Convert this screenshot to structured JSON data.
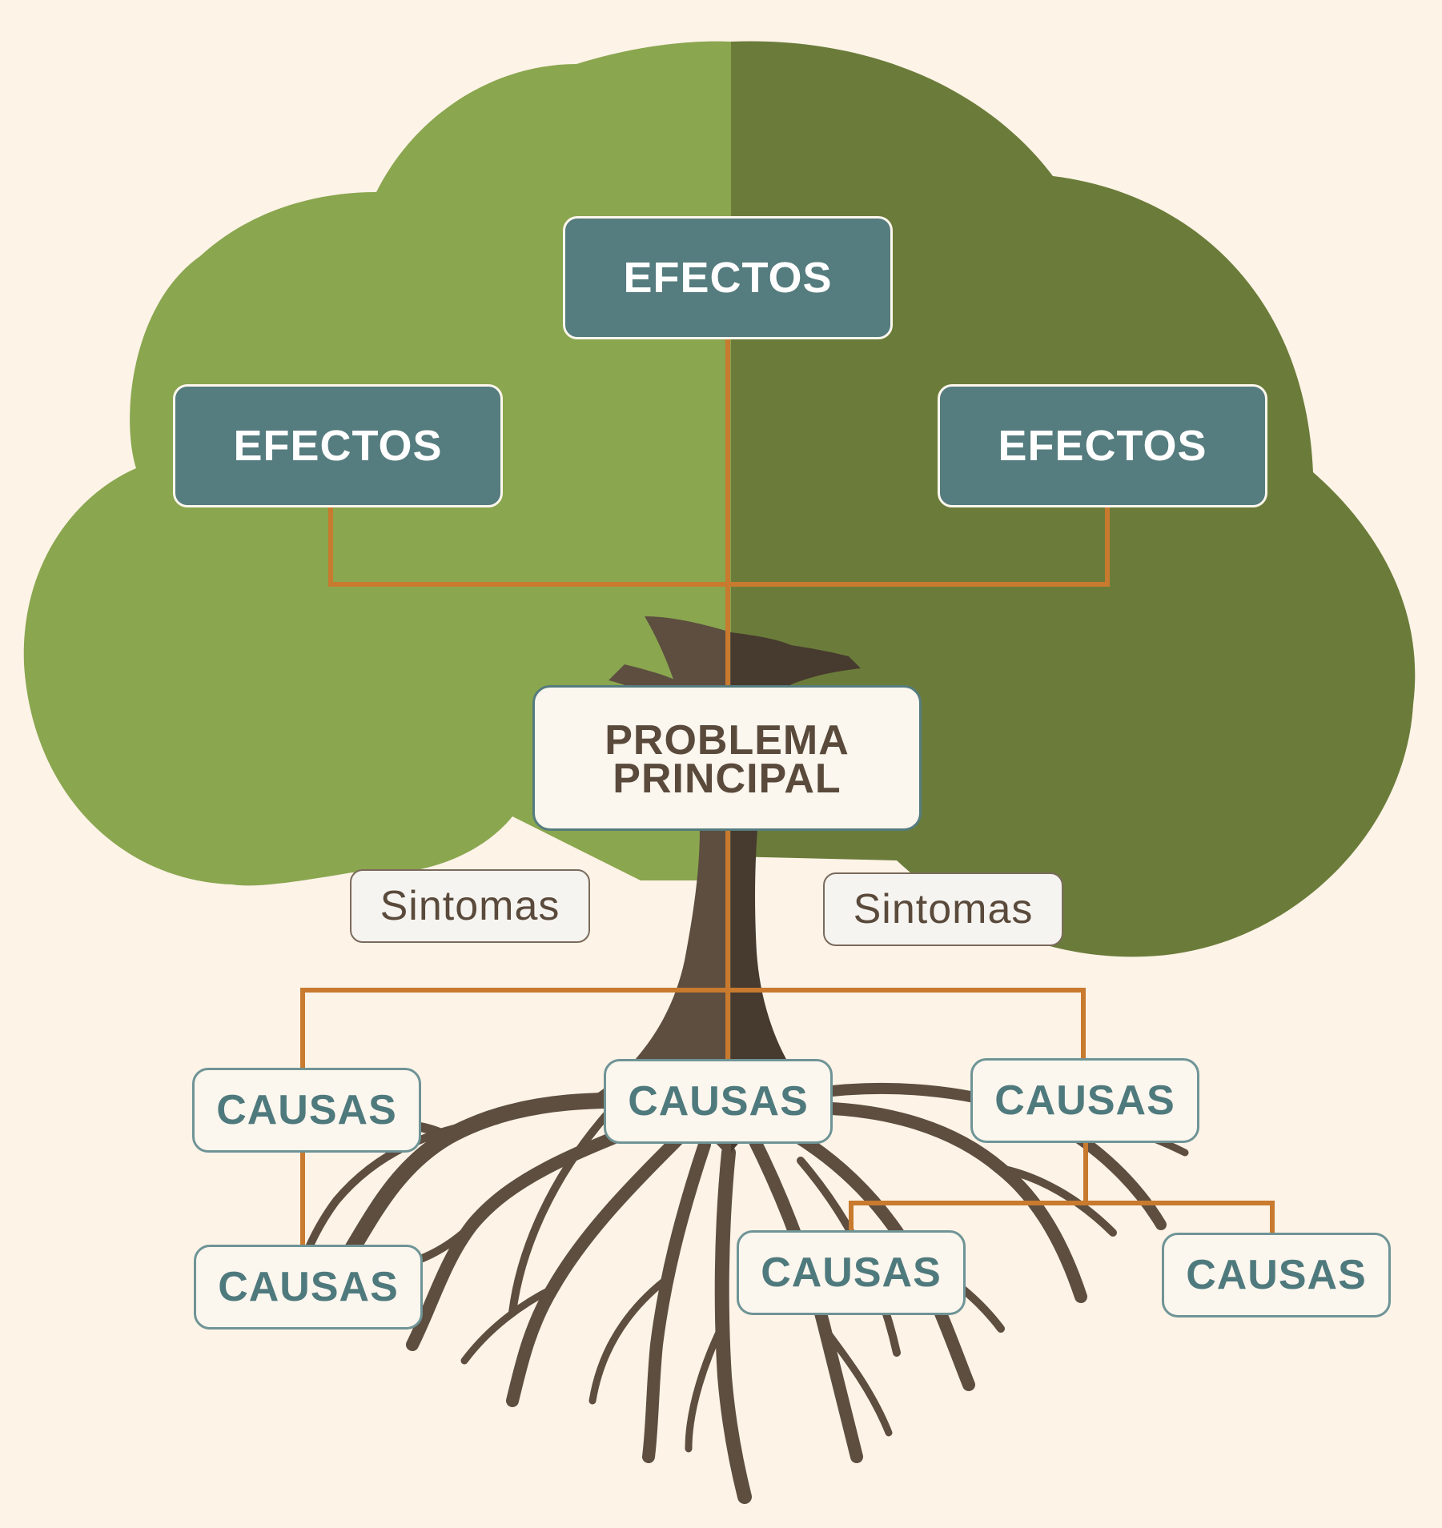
{
  "diagram": {
    "type": "problem-tree",
    "colors": {
      "background": "#fdf3e7",
      "canopy_light": "#8aa64f",
      "canopy_dark": "#6b7c3a",
      "trunk": "#5d4e40",
      "trunk_shadow": "#473a2f",
      "connector": "#c87a2e",
      "effect_box": "#557c7e",
      "cause_text": "#4f7a7d"
    },
    "effects": [
      {
        "label": "EFECTOS"
      },
      {
        "label": "EFECTOS"
      },
      {
        "label": "EFECTOS"
      }
    ],
    "problem": {
      "line1": "PROBLEMA",
      "line2": "PRINCIPAL"
    },
    "symptoms": [
      {
        "label": "Sintomas"
      },
      {
        "label": "Sintomas"
      }
    ],
    "causes": [
      {
        "label": "CAUSAS"
      },
      {
        "label": "CAUSAS"
      },
      {
        "label": "CAUSAS"
      },
      {
        "label": "CAUSAS"
      },
      {
        "label": "CAUSAS"
      },
      {
        "label": "CAUSAS"
      }
    ]
  }
}
